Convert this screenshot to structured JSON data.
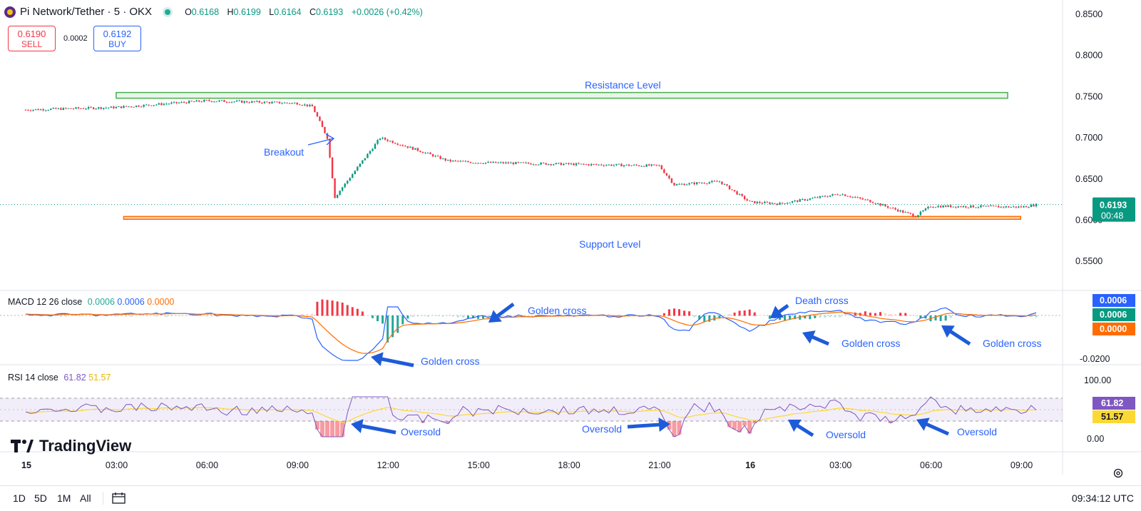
{
  "header": {
    "symbol": "Pi Network/Tether · 5 · OKX",
    "open_label": "O",
    "open": "0.6168",
    "high_label": "H",
    "high": "0.6199",
    "low_label": "L",
    "low": "0.6164",
    "close_label": "C",
    "close": "0.6193",
    "change": "+0.0026 (+0.42%)"
  },
  "trade": {
    "sell_price": "0.6190",
    "sell_label": "SELL",
    "spread": "0.0002",
    "buy_price": "0.6192",
    "buy_label": "BUY"
  },
  "indicators": {
    "macd_label": "MACD 12 26 close",
    "macd_values": [
      "0.0006",
      "0.0006",
      "0.0000"
    ],
    "macd_badges": [
      "0.0006",
      "0.0006",
      "0.0000"
    ],
    "rsi_label": "RSI 14 close",
    "rsi_value": "61.82",
    "rsi_ma": "51.57"
  },
  "logo": "TradingView",
  "footer": {
    "tf": [
      "1D",
      "5D",
      "1M",
      "All"
    ],
    "clock": "09:34:12 UTC"
  },
  "chart_data": [
    {
      "type": "candlestick",
      "title": "Pi Network/Tether · 5 · OKX",
      "x_ticks": [
        "15",
        "03:00",
        "06:00",
        "09:00",
        "12:00",
        "15:00",
        "18:00",
        "21:00",
        "16",
        "03:00",
        "06:00",
        "09:00"
      ],
      "y_ticks": [
        "0.8500",
        "0.8000",
        "0.7500",
        "0.7000",
        "0.6500",
        "0.6000",
        "0.5500"
      ],
      "ylim": [
        0.54,
        0.86
      ],
      "last_price": "0.6193",
      "countdown": "00:48",
      "path": [
        [
          "15 00:00",
          0.734
        ],
        [
          "03:00",
          0.737
        ],
        [
          "06:00",
          0.745
        ],
        [
          "09:00",
          0.742
        ],
        [
          "09:30",
          0.738
        ],
        [
          "10:00",
          0.7
        ],
        [
          "10:15",
          0.628
        ],
        [
          "11:00",
          0.664
        ],
        [
          "11:45",
          0.7
        ],
        [
          "13:00",
          0.685
        ],
        [
          "14:00",
          0.672
        ],
        [
          "15:00",
          0.67
        ],
        [
          "18:00",
          0.668
        ],
        [
          "21:00",
          0.666
        ],
        [
          "21:30",
          0.643
        ],
        [
          "23:00",
          0.647
        ],
        [
          "16 00:00",
          0.622
        ],
        [
          "01:00",
          0.62
        ],
        [
          "03:00",
          0.632
        ],
        [
          "04:00",
          0.623
        ],
        [
          "05:30",
          0.605
        ],
        [
          "06:00",
          0.617
        ],
        [
          "09:00",
          0.616
        ],
        [
          "09:34",
          0.619
        ]
      ],
      "annotations": [
        {
          "text": "Resistance Level",
          "from": "03:00",
          "to": "09:30 (16)",
          "y": 0.752,
          "color": "#4caf50"
        },
        {
          "text": "Support Level",
          "from": "03:00",
          "to": "09:34 (16)",
          "y": 0.604,
          "color": "#ff6d00"
        },
        {
          "text": "Breakout",
          "x": "10:00",
          "y": 0.7
        }
      ]
    },
    {
      "type": "line",
      "title": "MACD 12 26 close",
      "y_ticks": [
        "-0.0200"
      ],
      "annotations": [
        "Golden cross",
        "Golden cross",
        "Death cross",
        "Golden cross",
        "Golden cross"
      ]
    },
    {
      "type": "line",
      "title": "RSI 14 close",
      "y_ticks": [
        "100.00",
        "0.00"
      ],
      "values": {
        "rsi": 61.82,
        "rsi_ma": 51.57
      },
      "annotations": [
        "Oversold",
        "Oversold",
        "Oversold",
        "Oversold"
      ]
    }
  ],
  "colors": {
    "up": "#089981",
    "down": "#f23645",
    "macd": "#2962ff",
    "signal": "#ff6d00",
    "rsi": "#7e57c2",
    "rsi_ma": "#fdd835",
    "arrow": "#1e5bd8"
  }
}
